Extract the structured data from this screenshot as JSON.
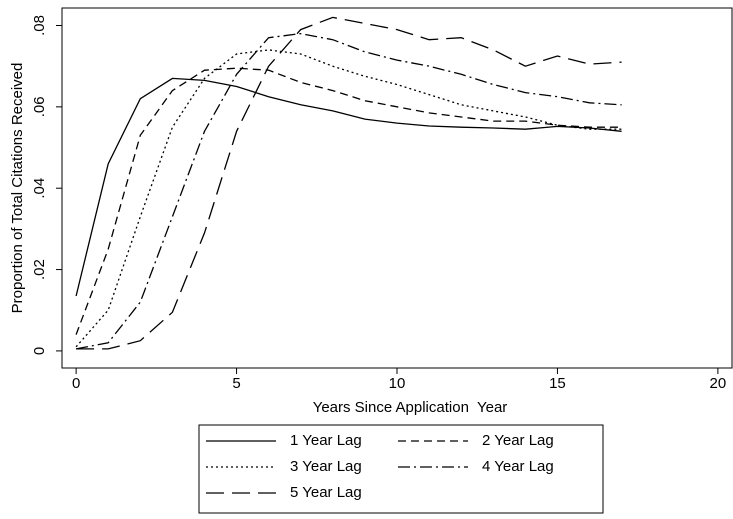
{
  "chart_data": {
    "type": "line",
    "x_label": "Years Since Application  Year",
    "y_label": "Proportion of Total Citations Received",
    "x": [
      0,
      1,
      2,
      3,
      4,
      5,
      6,
      7,
      8,
      9,
      10,
      11,
      12,
      13,
      14,
      15,
      16,
      17
    ],
    "series": [
      {
        "name": "1 Year Lag",
        "color": "#000000",
        "dash": "none",
        "values": [
          0.0135,
          0.046,
          0.062,
          0.067,
          0.0665,
          0.065,
          0.0625,
          0.0605,
          0.059,
          0.057,
          0.056,
          0.0553,
          0.055,
          0.0548,
          0.0545,
          0.0552,
          0.0548,
          0.054
        ]
      },
      {
        "name": "2 Year Lag",
        "color": "#000000",
        "dash": "8,5",
        "values": [
          0.004,
          0.025,
          0.053,
          0.064,
          0.069,
          0.0695,
          0.069,
          0.066,
          0.064,
          0.0615,
          0.06,
          0.0585,
          0.0575,
          0.0565,
          0.0565,
          0.0555,
          0.055,
          0.055
        ]
      },
      {
        "name": "3 Year Lag",
        "color": "#000000",
        "dash": "2,3",
        "values": [
          0.001,
          0.01,
          0.033,
          0.055,
          0.067,
          0.073,
          0.074,
          0.073,
          0.07,
          0.0675,
          0.0655,
          0.063,
          0.0605,
          0.059,
          0.0575,
          0.0555,
          0.0545,
          0.0545
        ]
      },
      {
        "name": "4 Year Lag",
        "color": "#000000",
        "dash": "12,4,2,4",
        "values": [
          0.0005,
          0.002,
          0.012,
          0.033,
          0.054,
          0.068,
          0.077,
          0.078,
          0.0765,
          0.0735,
          0.0715,
          0.07,
          0.068,
          0.0655,
          0.0635,
          0.0625,
          0.061,
          0.0605
        ]
      },
      {
        "name": "5 Year Lag",
        "color": "#000000",
        "dash": "18,8",
        "values": [
          0.0005,
          0.0005,
          0.0025,
          0.0095,
          0.029,
          0.054,
          0.07,
          0.079,
          0.082,
          0.0805,
          0.079,
          0.0765,
          0.077,
          0.074,
          0.07,
          0.0725,
          0.0705,
          0.071
        ]
      }
    ],
    "xlim": [
      -0.44,
      20.44
    ],
    "ylim": [
      -0.0042,
      0.0843
    ],
    "xticks": [
      0,
      5,
      10,
      15,
      20
    ],
    "yticks": [
      0,
      {
        "value": 0.02,
        "label": ".02"
      },
      {
        "value": 0.04,
        "label": ".04"
      },
      {
        "value": 0.06,
        "label": ".06"
      },
      {
        "value": 0.08,
        "label": ".08"
      }
    ],
    "grid": false,
    "legend": "below"
  }
}
